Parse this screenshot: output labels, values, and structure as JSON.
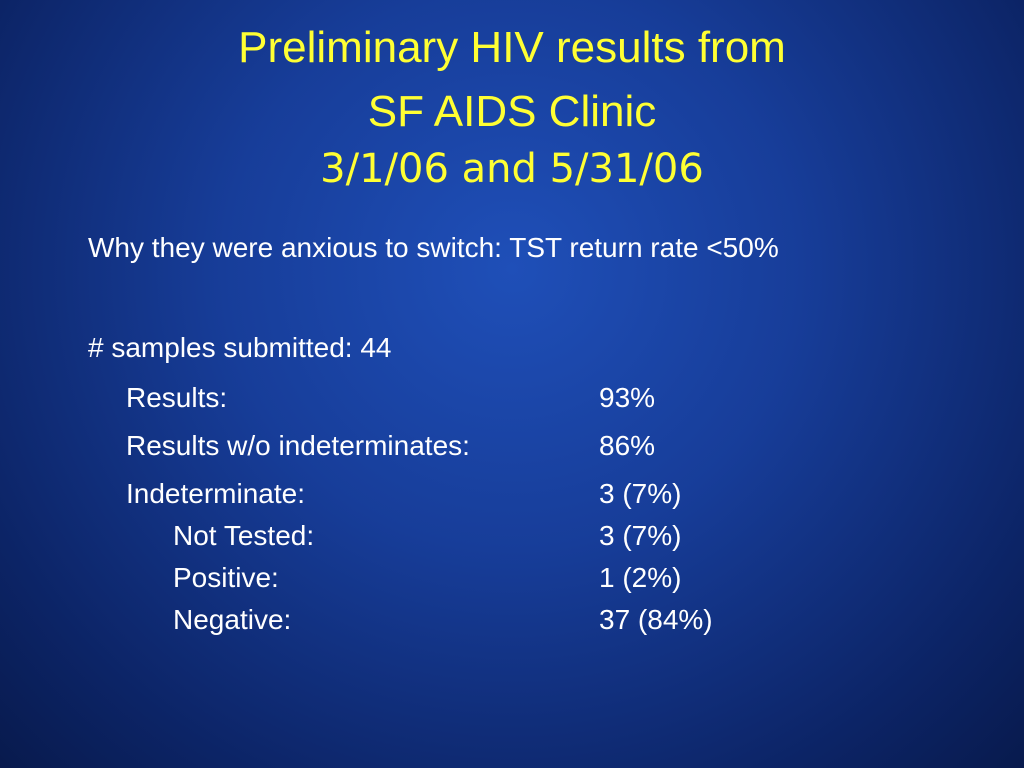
{
  "title": {
    "line1": "Preliminary HIV results from",
    "line2": "SF AIDS Clinic",
    "dates": "3/1/06 and 5/31/06"
  },
  "body": {
    "intro": "Why they were anxious to switch: TST return rate  <50%",
    "samples": "# samples submitted: 44",
    "rows": [
      {
        "label": "Results:",
        "value": "93%",
        "level": 1
      },
      {
        "label": "Results w/o indeterminates:",
        "value": "86%",
        "level": 1
      },
      {
        "label": "Indeterminate:",
        "value": "3 (7%)",
        "level": 1
      },
      {
        "label": "Not Tested:",
        "value": "3 (7%)",
        "level": 2
      },
      {
        "label": "Positive:",
        "value": "1 (2%)",
        "level": 2
      },
      {
        "label": "Negative:",
        "value": "37 (84%)",
        "level": 2
      }
    ]
  }
}
